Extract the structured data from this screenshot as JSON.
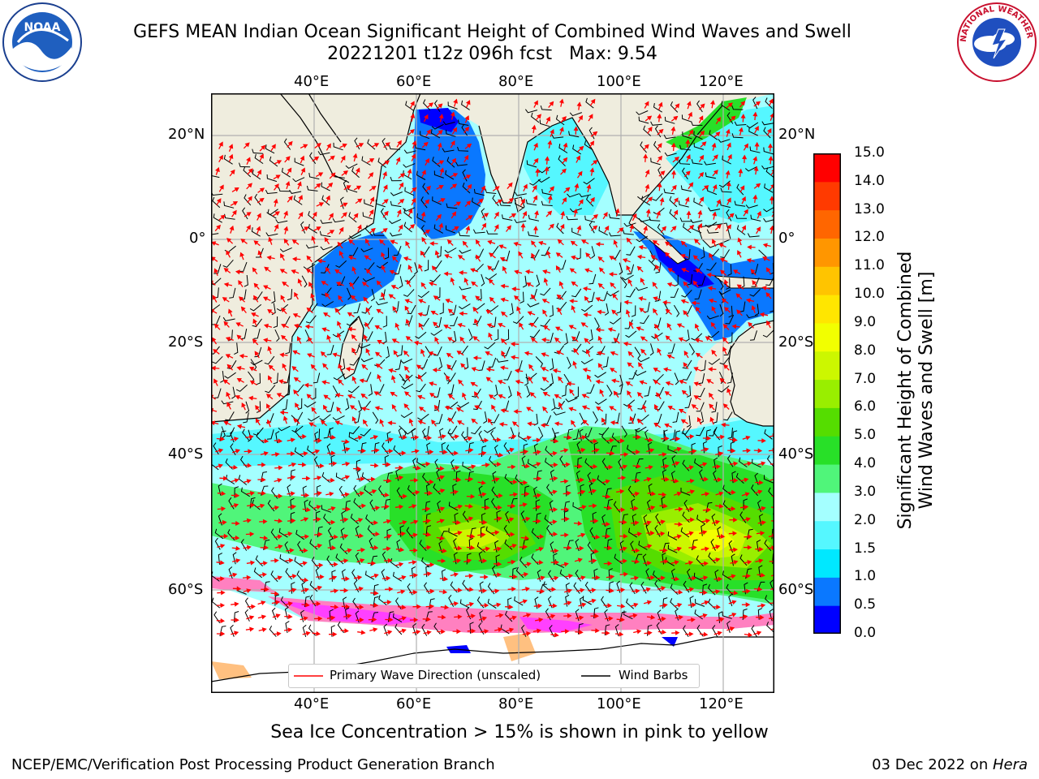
{
  "title": {
    "line1": "GEFS MEAN Indian Ocean Significant Height of Combined Wind Waves and Swell",
    "line2": "20221201 t12z 096h fcst   Max: 9.54"
  },
  "map": {
    "lon_ticks_top": [
      "40°E",
      "60°E",
      "80°E",
      "100°E",
      "120°E"
    ],
    "lon_ticks_bottom": [
      "40°E",
      "60°E",
      "80°E",
      "100°E",
      "120°E"
    ],
    "lat_ticks_left": [
      "20°N",
      "0°",
      "20°S",
      "40°S",
      "60°S"
    ],
    "lat_ticks_right": [
      "20°N",
      "0°",
      "20°S",
      "40°S",
      "60°S"
    ],
    "legend": {
      "wave_direction": "Primary Wave Direction (unscaled)",
      "wind_barbs": "Wind Barbs",
      "wave_color": "#ff0000",
      "barb_color": "#000000"
    },
    "land_color": "#efedde",
    "ice_note": "Sea Ice Concentration > 15% is shown in pink to yellow"
  },
  "colorbar": {
    "title_line1": "Significant Height of Combined",
    "title_line2": "Wind Waves and Swell [m]",
    "labels": [
      "0.0",
      "0.5",
      "1.0",
      "1.5",
      "2.0",
      "3.0",
      "4.0",
      "5.0",
      "6.0",
      "7.0",
      "8.0",
      "9.0",
      "10.0",
      "11.0",
      "12.0",
      "13.0",
      "14.0",
      "15.0"
    ],
    "colors": [
      "#0000ff",
      "#0a78ff",
      "#00e8ff",
      "#55f7ff",
      "#a4ffff",
      "#50f57a",
      "#28e028",
      "#55dd00",
      "#99ee00",
      "#ccf700",
      "#f2ff00",
      "#ffe600",
      "#ffc400",
      "#ff9600",
      "#ff6600",
      "#ff3a00",
      "#ff0000"
    ]
  },
  "logos": {
    "noaa": "NOAA",
    "nws": "NATIONAL WEATHER SERVICE"
  },
  "footer": {
    "left": "NCEP/EMC/Verification Post Processing Product Generation Branch",
    "right_prefix": "03 Dec 2022 on ",
    "right_host": "Hera"
  }
}
